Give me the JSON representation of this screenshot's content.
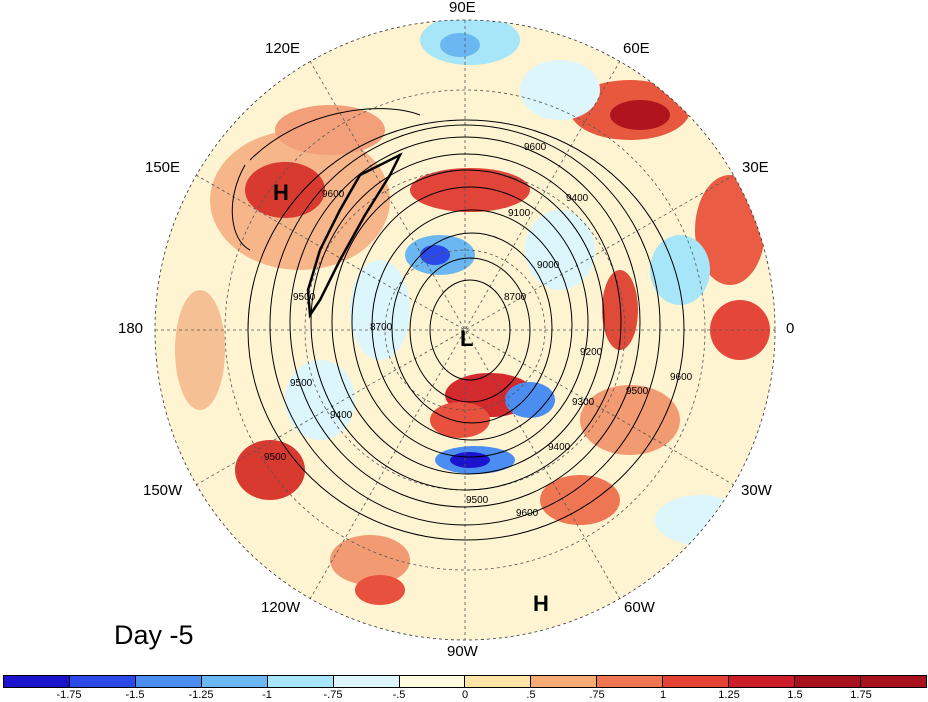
{
  "panel_title": "Day -5",
  "longitude_labels": {
    "lon_0": "0",
    "lon_30e": "30E",
    "lon_60e": "60E",
    "lon_90e": "90E",
    "lon_120e": "120E",
    "lon_150e": "150E",
    "lon_180": "180",
    "lon_150w": "150W",
    "lon_120w": "120W",
    "lon_90w": "90W",
    "lon_60w": "60W",
    "lon_30w": "30W"
  },
  "pressure_markers": {
    "high_pacific": "H",
    "low_arctic": "L",
    "high_caribbean": "H"
  },
  "contour_labels": [
    "9600",
    "9400",
    "9100",
    "9000",
    "8700",
    "8700",
    "9200",
    "9300",
    "9500",
    "9600",
    "9400",
    "9500",
    "9600",
    "9500",
    "9400",
    "9500",
    "9600",
    "9500"
  ],
  "colorbar": {
    "colors": [
      "#1c14cc",
      "#2a49e8",
      "#4b8df0",
      "#6ab7f2",
      "#a6e6f8",
      "#dcf6fb",
      "#fffbdf",
      "#fde5a8",
      "#f6ab74",
      "#ef7653",
      "#e34235",
      "#cc1d28",
      "#a8121e"
    ],
    "tick_labels": [
      "-1.75",
      "-1.5",
      "-1.25",
      "-1",
      "-.75",
      "-.5",
      "0",
      ".5",
      ".75",
      "1",
      "1.25",
      "1.5",
      "1.75"
    ]
  }
}
